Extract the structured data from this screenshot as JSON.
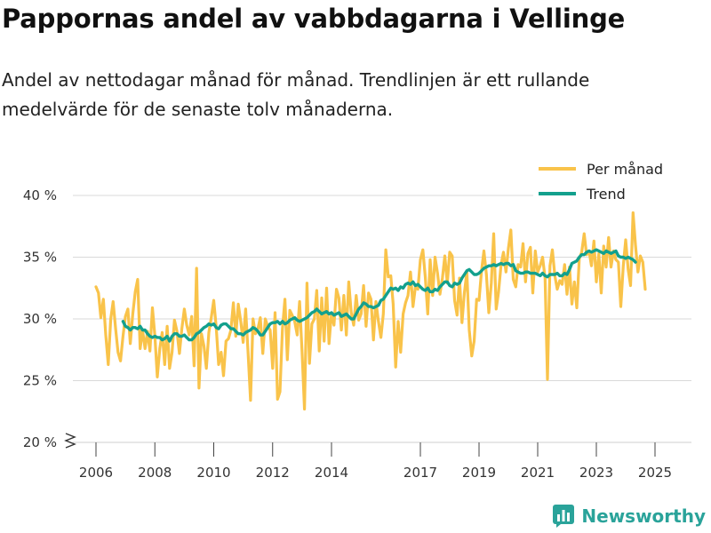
{
  "header": {
    "title": "Pappornas andel av vabbdagarna i Vellinge",
    "subtitle": "Andel av nettodagar månad för månad. Trendlinjen är ett rullande medelvärde för de senaste tolv månaderna."
  },
  "brand": {
    "name": "Newsworthy",
    "icon": "bar-chart-icon",
    "color": "#2aa39a"
  },
  "colors": {
    "monthly": "#f9c34a",
    "trend": "#13a08d",
    "grid": "#d9d9d9"
  },
  "chart_data": {
    "type": "line",
    "title": "Pappornas andel av vabbdagarna i Vellinge",
    "xlabel": "",
    "ylabel": "",
    "ylim": [
      20,
      40
    ],
    "y_ticks": [
      20,
      25,
      30,
      35,
      40
    ],
    "y_tick_labels": [
      "20 %",
      "25 %",
      "30 %",
      "35 %",
      "40 %"
    ],
    "x_ticks": [
      "2006",
      "2008",
      "2010",
      "2012",
      "2014",
      "2017",
      "2019",
      "2021",
      "2023",
      "2025"
    ],
    "legend": {
      "position": "top-right",
      "entries": [
        "Per månad",
        "Trend"
      ]
    },
    "series": [
      {
        "name": "Per månad",
        "start": "2006-01",
        "values": [
          32.6,
          32.1,
          30.1,
          31.6,
          28.7,
          26.3,
          30.0,
          31.4,
          29.2,
          27.3,
          26.6,
          28.6,
          30.2,
          30.8,
          28.0,
          30.4,
          32.2,
          33.2,
          27.6,
          29.1,
          27.6,
          29.0,
          27.4,
          30.9,
          28.6,
          25.3,
          27.6,
          28.9,
          26.3,
          29.4,
          26.0,
          27.3,
          29.9,
          29.0,
          27.2,
          29.2,
          30.8,
          29.5,
          28.7,
          30.2,
          26.2,
          34.1,
          24.4,
          28.8,
          27.8,
          26.0,
          28.9,
          30.1,
          31.5,
          29.3,
          26.3,
          27.3,
          25.4,
          28.2,
          28.4,
          29.1,
          31.3,
          28.6,
          31.2,
          29.8,
          28.1,
          30.8,
          27.3,
          23.4,
          30.0,
          28.8,
          29.2,
          30.1,
          27.2,
          30.0,
          29.4,
          29.1,
          26.0,
          30.5,
          23.5,
          24.1,
          29.2,
          31.6,
          26.7,
          30.7,
          30.3,
          29.8,
          28.7,
          31.4,
          27.3,
          22.7,
          32.9,
          26.4,
          29.6,
          30.0,
          32.3,
          27.4,
          31.7,
          28.2,
          32.5,
          28.0,
          30.5,
          29.5,
          32.4,
          31.7,
          29.1,
          31.9,
          28.7,
          33.0,
          30.5,
          29.5,
          31.9,
          29.9,
          30.4,
          32.7,
          29.4,
          32.1,
          31.6,
          28.3,
          31.4,
          29.8,
          28.5,
          30.4,
          35.6,
          33.4,
          33.5,
          31.2,
          26.1,
          29.8,
          27.3,
          30.4,
          31.3,
          31.9,
          33.8,
          31.0,
          32.6,
          32.4,
          34.8,
          35.6,
          33.4,
          30.4,
          34.8,
          31.9,
          35.0,
          33.7,
          32.0,
          33.3,
          35.1,
          32.9,
          35.4,
          35.1,
          31.5,
          30.3,
          33.3,
          29.7,
          32.1,
          33.8,
          29.1,
          27.0,
          28.2,
          31.6,
          31.5,
          33.9,
          35.5,
          33.6,
          30.5,
          32.9,
          36.9,
          30.8,
          32.2,
          34.4,
          35.4,
          33.8,
          35.7,
          37.2,
          33.2,
          32.6,
          34.4,
          34.2,
          36.1,
          33.0,
          35.3,
          35.8,
          32.1,
          35.5,
          33.8,
          34.3,
          35.0,
          33.3,
          25.1,
          34.3,
          35.6,
          33.5,
          32.4,
          33.1,
          32.8,
          34.4,
          32.0,
          34.2,
          31.2,
          33.0,
          30.9,
          34.9,
          35.4,
          36.9,
          35.2,
          35.5,
          34.3,
          36.3,
          33.0,
          35.3,
          32.1,
          35.9,
          34.2,
          36.6,
          34.2,
          35.5,
          34.8,
          34.6,
          31.0,
          34.3,
          36.4,
          34.0,
          32.7,
          38.6,
          36.0,
          33.8,
          35.1,
          34.6,
          32.4
        ]
      },
      {
        "name": "Trend",
        "start": "2006-12",
        "values": [
          29.8,
          29.4,
          29.3,
          29.1,
          29.3,
          29.3,
          29.2,
          29.4,
          29.1,
          29.1,
          28.8,
          28.6,
          28.5,
          28.6,
          28.5,
          28.5,
          28.3,
          28.4,
          28.6,
          28.2,
          28.6,
          28.8,
          28.8,
          28.6,
          28.6,
          28.7,
          28.5,
          28.3,
          28.3,
          28.5,
          28.8,
          28.9,
          29.1,
          29.3,
          29.4,
          29.6,
          29.5,
          29.6,
          29.3,
          29.2,
          29.5,
          29.6,
          29.6,
          29.4,
          29.2,
          29.2,
          29.0,
          28.8,
          28.8,
          28.7,
          28.9,
          29.0,
          29.1,
          29.3,
          29.2,
          29.0,
          28.7,
          28.7,
          29.0,
          29.3,
          29.6,
          29.7,
          29.7,
          29.8,
          29.6,
          29.8,
          29.6,
          29.7,
          29.9,
          30.0,
          30.1,
          29.9,
          29.8,
          29.9,
          30.0,
          30.1,
          30.3,
          30.5,
          30.6,
          30.8,
          30.6,
          30.4,
          30.5,
          30.6,
          30.4,
          30.5,
          30.3,
          30.4,
          30.5,
          30.2,
          30.3,
          30.4,
          30.2,
          30.0,
          30.0,
          30.4,
          30.8,
          31.0,
          31.3,
          31.2,
          31.0,
          31.0,
          30.9,
          31.0,
          31.1,
          31.5,
          31.6,
          31.9,
          32.2,
          32.5,
          32.4,
          32.5,
          32.3,
          32.6,
          32.5,
          32.8,
          32.9,
          32.8,
          33.0,
          32.7,
          32.8,
          32.6,
          32.4,
          32.3,
          32.5,
          32.2,
          32.2,
          32.4,
          32.3,
          32.6,
          32.8,
          33.0,
          33.0,
          32.7,
          32.6,
          32.9,
          32.8,
          32.9,
          33.3,
          33.6,
          33.9,
          34.0,
          33.8,
          33.6,
          33.6,
          33.7,
          33.9,
          34.1,
          34.2,
          34.3,
          34.3,
          34.4,
          34.3,
          34.4,
          34.5,
          34.4,
          34.5,
          34.5,
          34.3,
          34.4,
          33.9,
          33.8,
          33.7,
          33.7,
          33.8,
          33.8,
          33.7,
          33.7,
          33.7,
          33.6,
          33.5,
          33.7,
          33.5,
          33.4,
          33.6,
          33.6,
          33.6,
          33.7,
          33.5,
          33.5,
          33.7,
          33.6,
          34.0,
          34.5,
          34.6,
          34.7,
          35.0,
          35.2,
          35.2,
          35.4,
          35.5,
          35.4,
          35.5,
          35.6,
          35.5,
          35.4,
          35.3,
          35.5,
          35.4,
          35.3,
          35.4,
          35.5,
          35.1,
          35.0,
          35.0,
          34.9,
          35.0,
          34.9,
          34.8,
          34.6
        ]
      }
    ]
  }
}
